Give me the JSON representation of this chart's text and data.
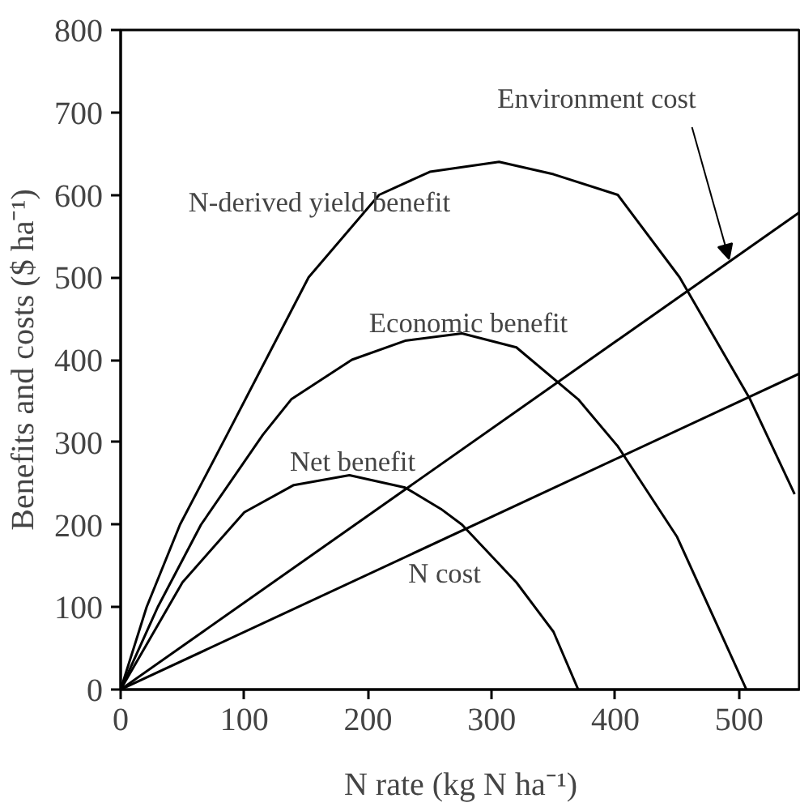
{
  "chart_data": {
    "type": "line",
    "xlabel": "N rate (kg N ha⁻¹)",
    "ylabel": "Benefits and costs ($ ha⁻¹)",
    "xlim": [
      0,
      550
    ],
    "ylim": [
      0,
      800
    ],
    "xticks": [
      0,
      100,
      200,
      300,
      400,
      500
    ],
    "yticks": [
      0,
      100,
      200,
      300,
      400,
      500,
      600,
      700,
      800
    ],
    "grid": false,
    "legend": false,
    "marker": "none",
    "line_style": "solid",
    "series": [
      {
        "name": "N-derived yield benefit",
        "color": "#000000",
        "x": [
          0,
          21,
          48,
          86,
          152,
          209,
          250,
          306,
          350,
          402,
          452,
          509,
          545
        ],
        "values": [
          0,
          100,
          200,
          309,
          500,
          600,
          628,
          640,
          625,
          600,
          500,
          352,
          237
        ]
      },
      {
        "name": "Economic benefit",
        "color": "#000000",
        "x": [
          0,
          30,
          65,
          115,
          138,
          187,
          230,
          276,
          320,
          370,
          402,
          450,
          506
        ],
        "values": [
          0,
          100,
          200,
          309,
          352,
          400,
          423,
          432,
          415,
          352,
          295,
          185,
          0
        ]
      },
      {
        "name": "Net benefit",
        "color": "#000000",
        "x": [
          0,
          50,
          100,
          140,
          185,
          230,
          259,
          276,
          320,
          350,
          370
        ],
        "values": [
          0,
          130,
          215,
          248,
          260,
          245,
          219,
          200,
          130,
          70,
          0
        ]
      },
      {
        "color": "#000000",
        "x": [
          0,
          550
        ],
        "values": [
          0,
          580
        ]
      },
      {
        "name": "N cost",
        "color": "#000000",
        "x": [
          0,
          550
        ],
        "values": [
          0,
          384
        ]
      }
    ],
    "annotations": [
      {
        "text": "Environment cost",
        "x": 492,
        "y": 522
      }
    ]
  }
}
